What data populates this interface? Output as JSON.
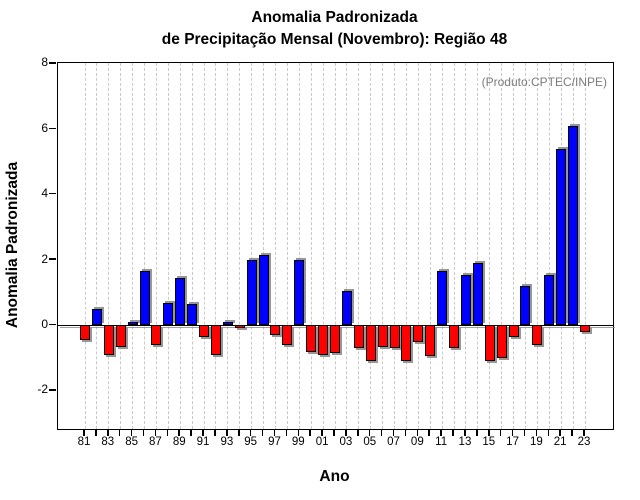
{
  "title": {
    "line1": "Anomalia Padronizada",
    "line2": "de Precipitação Mensal (Novembro): Região 48"
  },
  "annotation": {
    "text": "(Produto:CPTEC/INPE)",
    "color": "#7b7b7b"
  },
  "axes": {
    "x_label": "Ano",
    "y_label": "Anomalia Padronizada"
  },
  "chart_data": {
    "type": "bar",
    "title": "Anomalia Padronizada de Precipitação Mensal (Novembro): Região 48",
    "xlabel": "Ano",
    "ylabel": "Anomalia Padronizada",
    "ylim": [
      -3.17,
      8.03
    ],
    "yticks": [
      -2,
      0,
      2,
      4,
      6,
      8
    ],
    "x_label_every": 2,
    "grid": "vertical-dashed-every-year",
    "legend_position": "none",
    "positive_color": "#0000ff",
    "negative_color": "#ff0000",
    "categories": [
      "81",
      "82",
      "83",
      "84",
      "85",
      "86",
      "87",
      "88",
      "89",
      "90",
      "91",
      "92",
      "93",
      "94",
      "95",
      "96",
      "97",
      "98",
      "99",
      "00",
      "01",
      "02",
      "03",
      "04",
      "05",
      "06",
      "07",
      "08",
      "09",
      "10",
      "11",
      "12",
      "13",
      "14",
      "15",
      "16",
      "17",
      "18",
      "19",
      "20",
      "21",
      "22",
      "23"
    ],
    "values": [
      -0.45,
      0.5,
      -0.9,
      -0.65,
      0.1,
      1.65,
      -0.6,
      0.7,
      1.45,
      0.65,
      -0.35,
      -0.9,
      0.1,
      -0.07,
      2.0,
      2.15,
      -0.3,
      -0.6,
      2.0,
      -0.8,
      -0.9,
      -0.85,
      1.05,
      -0.7,
      -1.1,
      -0.65,
      -0.7,
      -1.1,
      -0.5,
      -0.95,
      1.65,
      -0.7,
      1.55,
      1.9,
      -1.1,
      -1.0,
      -0.35,
      1.2,
      -0.6,
      1.55,
      5.4,
      6.1,
      -0.2
    ]
  }
}
